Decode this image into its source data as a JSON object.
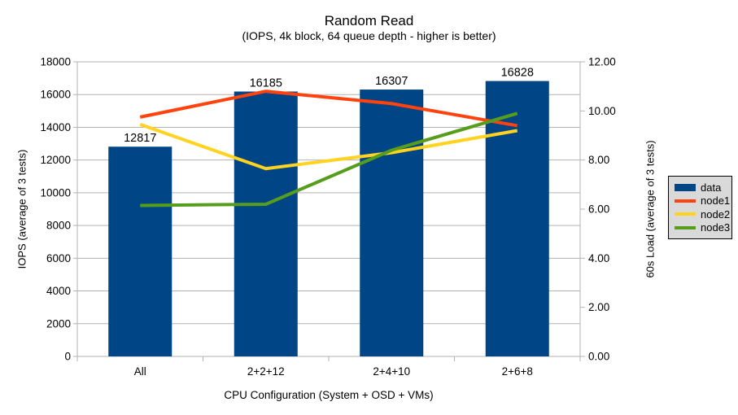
{
  "chart_data": {
    "type": "bar",
    "subtype": "bar-line-combo-dual-axis",
    "title": "Random Read",
    "subtitle": "(IOPS, 4k block, 64 queue depth - higher is better)",
    "categories": [
      "All",
      "2+2+12",
      "2+4+10",
      "2+6+8"
    ],
    "x_axis": {
      "title": "CPU Configuration (System + OSD + VMs)"
    },
    "left_axis": {
      "title": "IOPS (average of 3 tests)",
      "min": 0,
      "max": 18000,
      "step": 2000,
      "tick_labels": [
        "0",
        "2000",
        "4000",
        "6000",
        "8000",
        "10000",
        "12000",
        "14000",
        "16000",
        "18000"
      ]
    },
    "right_axis": {
      "title": "60s Load (average of 3 tests)",
      "min": 0,
      "max": 12,
      "step": 2,
      "tick_labels": [
        "0.00",
        "2.00",
        "4.00",
        "6.00",
        "8.00",
        "10.00",
        "12.00"
      ]
    },
    "series": [
      {
        "name": "data",
        "type": "bar",
        "axis": "left",
        "color": "#004586",
        "values": [
          12817,
          16185,
          16307,
          16828
        ],
        "labels": [
          "12817",
          "16185",
          "16307",
          "16828"
        ]
      },
      {
        "name": "node1",
        "type": "line",
        "axis": "right",
        "color": "#FF420E",
        "values": [
          9.75,
          10.8,
          10.3,
          9.4
        ]
      },
      {
        "name": "node2",
        "type": "line",
        "axis": "right",
        "color": "#FFD320",
        "values": [
          9.45,
          7.65,
          8.3,
          9.2
        ]
      },
      {
        "name": "node3",
        "type": "line",
        "axis": "right",
        "color": "#579D1C",
        "values": [
          6.15,
          6.2,
          8.4,
          9.9
        ]
      }
    ],
    "grid": "horizontal-on",
    "legend_position": "right",
    "colors": {
      "grid": "#b3b3b3",
      "axis": "#b3b3b3",
      "legend_bg": "#d9d9d9",
      "legend_border": "#000000",
      "background": "#ffffff",
      "text": "#000000"
    }
  }
}
